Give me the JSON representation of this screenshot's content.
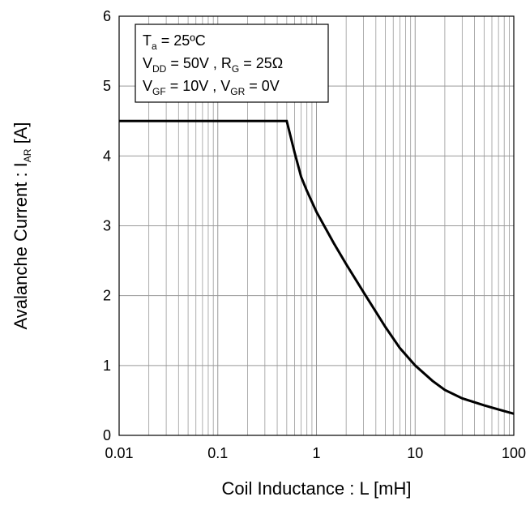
{
  "chart_data": {
    "type": "line",
    "title": "",
    "xlabel": "Coil Inductance : L [mH]",
    "ylabel_main": "Avalanche Current : I",
    "ylabel_sub": "AR",
    "ylabel_unit": " [A]",
    "xscale": "log",
    "xlim": [
      0.01,
      100
    ],
    "ylim": [
      0,
      6
    ],
    "xticks": [
      "0.01",
      "0.1",
      "1",
      "10",
      "100"
    ],
    "yticks": [
      "0",
      "1",
      "2",
      "3",
      "4",
      "5",
      "6"
    ],
    "grid": true,
    "legend_placement": "top-left",
    "conditions": [
      [
        {
          "t": "T"
        },
        {
          "t": "a",
          "sub": true
        },
        {
          "t": " = 25ºC"
        }
      ],
      [
        {
          "t": "V"
        },
        {
          "t": "DD",
          "sub": true
        },
        {
          "t": " = 50V , R"
        },
        {
          "t": "G",
          "sub": true
        },
        {
          "t": " = 25Ω"
        }
      ],
      [
        {
          "t": "V"
        },
        {
          "t": "GF",
          "sub": true
        },
        {
          "t": " = 10V , V"
        },
        {
          "t": "GR",
          "sub": true
        },
        {
          "t": " = 0V"
        }
      ]
    ],
    "series": [
      {
        "color": "#000000",
        "points": [
          [
            0.01,
            4.5
          ],
          [
            0.5,
            4.5
          ],
          [
            0.6,
            4.05
          ],
          [
            0.7,
            3.7
          ],
          [
            0.8,
            3.5
          ],
          [
            1,
            3.2
          ],
          [
            1.5,
            2.75
          ],
          [
            2,
            2.45
          ],
          [
            3,
            2.05
          ],
          [
            5,
            1.55
          ],
          [
            7,
            1.25
          ],
          [
            10,
            1.0
          ],
          [
            15,
            0.78
          ],
          [
            20,
            0.65
          ],
          [
            30,
            0.53
          ],
          [
            50,
            0.43
          ],
          [
            70,
            0.37
          ],
          [
            100,
            0.31
          ]
        ]
      }
    ]
  }
}
